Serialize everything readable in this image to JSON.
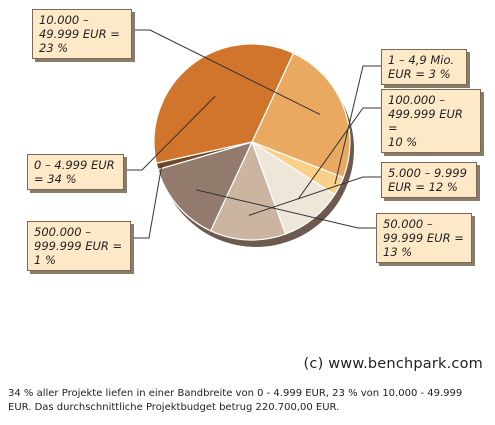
{
  "chart_data": {
    "type": "pie",
    "slices": [
      {
        "label": "10.000 –\n49.999 EUR =\n23 %",
        "value": 23,
        "color": "#eaa961"
      },
      {
        "label": "1 – 4,9 Mio.\nEUR = 3 %",
        "value": 3,
        "color": "#f9cf89"
      },
      {
        "label": "100.000 –\n499.999 EUR =\n10 %",
        "value": 10,
        "color": "#efe6da"
      },
      {
        "label": "5.000 – 9.999\nEUR = 12 %",
        "value": 12,
        "color": "#cbb4a0"
      },
      {
        "label": "50.000 –\n99.999 EUR =\n13 %",
        "value": 13,
        "color": "#927b6d"
      },
      {
        "label": "500.000 –\n999.999 EUR =\n1 %",
        "value": 1,
        "color": "#6f4a2a"
      },
      {
        "label": "0 – 4.999 EUR\n= 34 %",
        "value": 34,
        "color": "#d0752b"
      }
    ]
  },
  "watermark": "(c) www.benchpark.com",
  "caption": "34 % aller Projekte liefen in einer Bandbreite von 0 - 4.999 EUR, 23 % von 10.000 - 49.999 EUR. Das durchschnittliche Projektbudget betrug 220.700,00 EUR."
}
